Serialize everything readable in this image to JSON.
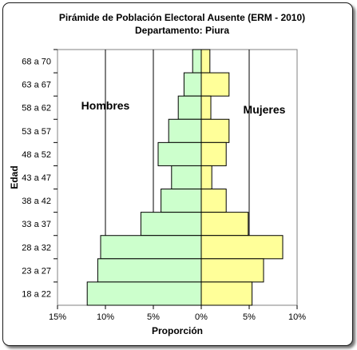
{
  "chart_data": {
    "type": "bar",
    "title": "Pirámide de Población Electoral Ausente (ERM - 2010)",
    "subtitle": "Departamento: Piura",
    "xlabel": "Proporción",
    "ylabel": "Edad",
    "categories": [
      "68 a 70",
      "63 a 67",
      "58 a 62",
      "53 a 57",
      "48 a 52",
      "43 a 47",
      "38 a 42",
      "33 a 37",
      "28 a 32",
      "23 a 27",
      "18 a 22"
    ],
    "series": [
      {
        "name": "Hombres",
        "values": [
          0.9,
          1.8,
          2.4,
          3.4,
          4.5,
          3.1,
          4.2,
          6.3,
          10.5,
          10.8,
          11.9
        ],
        "color": "#ccffcc"
      },
      {
        "name": "Mujeres",
        "values": [
          0.9,
          2.9,
          1.0,
          2.9,
          2.6,
          1.1,
          2.6,
          4.9,
          8.5,
          6.5,
          5.3
        ],
        "color": "#ffff99"
      }
    ],
    "xlim": [
      -15,
      10
    ],
    "xticks": [
      -15,
      -10,
      -5,
      0,
      5,
      10
    ],
    "xtick_labels": [
      "15%",
      "10%",
      "5%",
      "0%",
      "5%",
      "10%"
    ],
    "grid": "vertical",
    "legend": "inline labels"
  }
}
